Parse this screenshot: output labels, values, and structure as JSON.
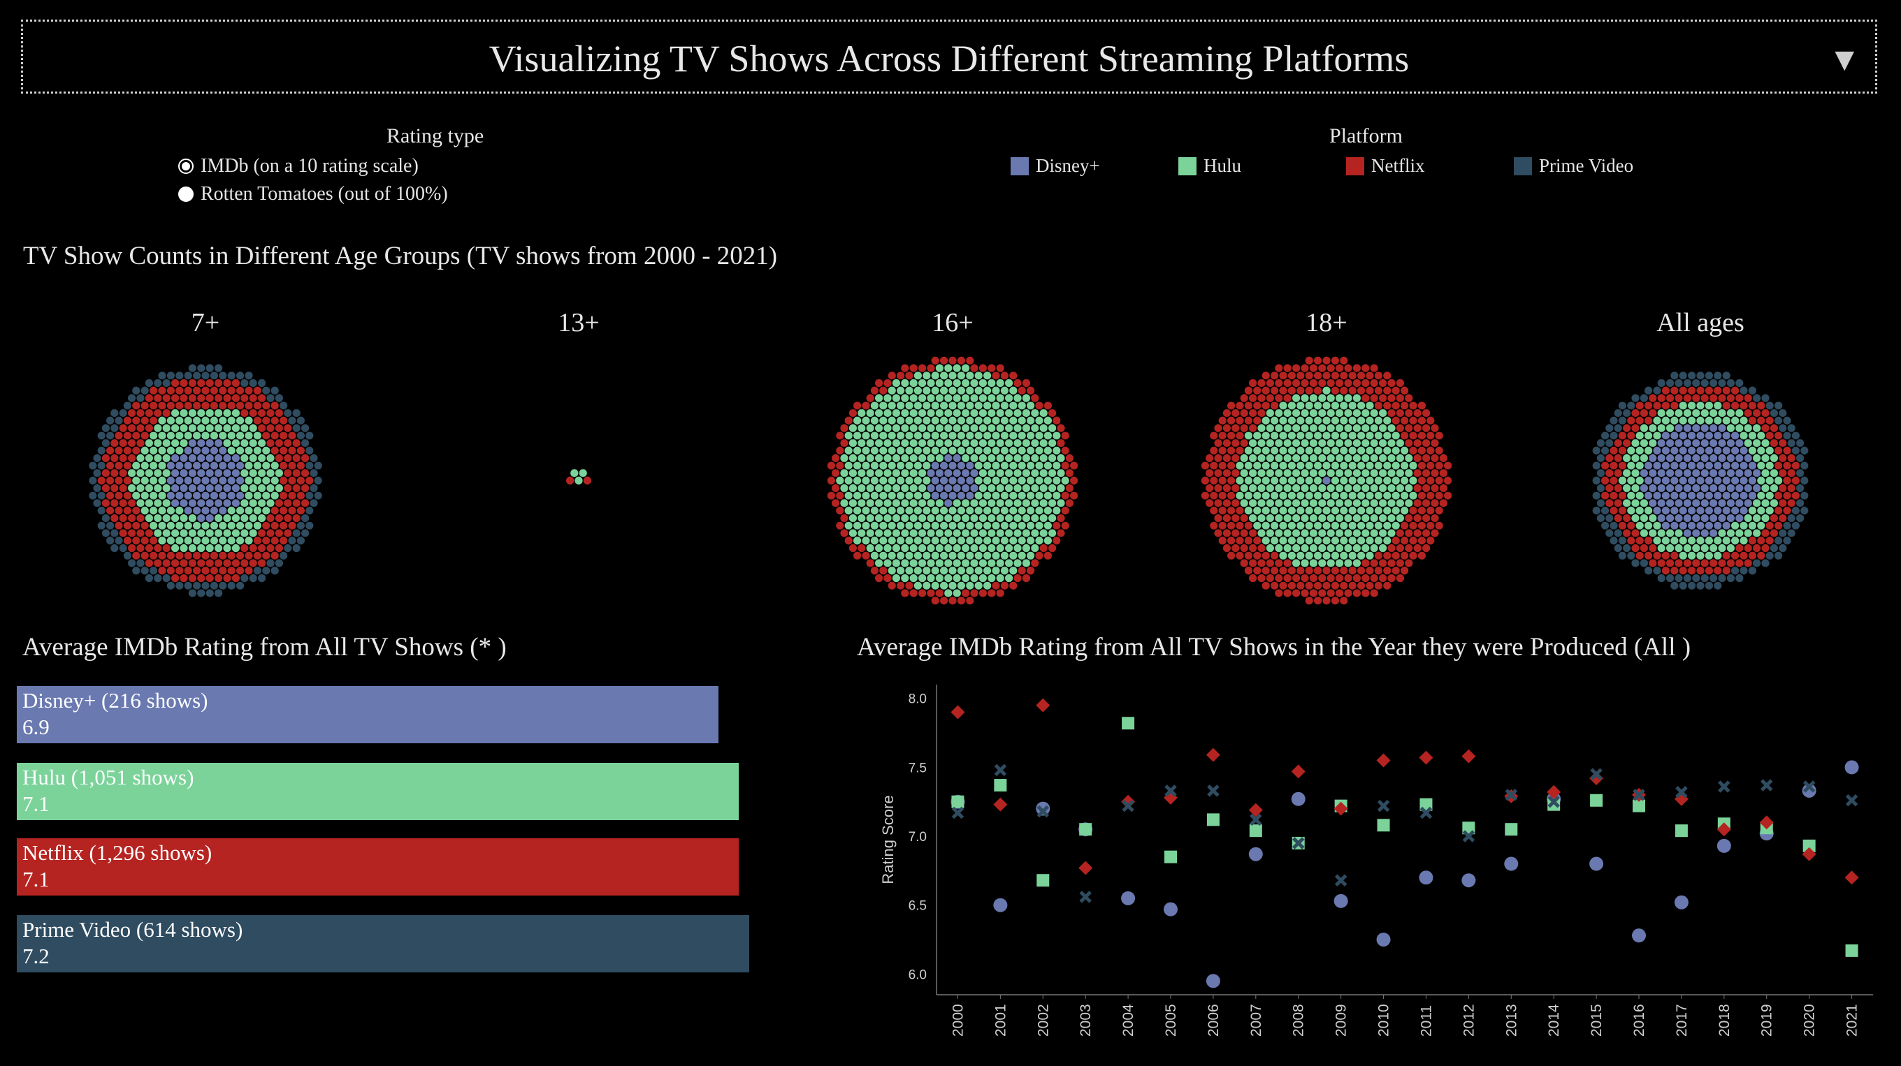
{
  "header": {
    "title": "Visualizing TV Shows Across Different Streaming Platforms",
    "dropdown_glyph": "▼"
  },
  "controls": {
    "rating_type_label": "Rating type",
    "options": [
      {
        "label": "IMDb (on a 10 rating scale)",
        "selected": true
      },
      {
        "label": "Rotten Tomatoes (out of 100%)",
        "selected": false
      }
    ],
    "platform_label": "Platform",
    "platforms": [
      {
        "name": "Disney+",
        "color": "#6a79b0"
      },
      {
        "name": "Hulu",
        "color": "#7bd39a"
      },
      {
        "name": "Netflix",
        "color": "#b52421"
      },
      {
        "name": "Prime Video",
        "color": "#2f4c60"
      }
    ]
  },
  "age_section": {
    "title": "TV Show Counts in Different Age Groups (TV shows from 2000 - 2021)",
    "groups": [
      "7+",
      "13+",
      "16+",
      "18+",
      "All ages"
    ]
  },
  "bar_section": {
    "title": "Average IMDb Rating from All TV Shows (* )"
  },
  "scatter_section": {
    "title": "Average IMDb Rating from All TV Shows in the Year they were Produced (All )"
  },
  "chart_data": [
    {
      "type": "scatter",
      "title": "TV Show Counts in Different Age Groups (TV shows from 2000 - 2021)",
      "categories": [
        "7+",
        "13+",
        "16+",
        "18+",
        "All ages"
      ],
      "note_layers_inner_to_outer": [
        "Disney+",
        "Hulu",
        "Netflix",
        "Prime Video"
      ],
      "series": [
        {
          "name": "Disney+",
          "values": [
            75,
            0,
            30,
            1,
            160
          ]
        },
        {
          "name": "Hulu",
          "values": [
            190,
            3,
            590,
            380,
            140
          ]
        },
        {
          "name": "Netflix",
          "values": [
            250,
            2,
            450,
            490,
            150
          ]
        },
        {
          "name": "Prime Video",
          "values": [
            120,
            0,
            200,
            160,
            120
          ]
        }
      ]
    },
    {
      "type": "bar",
      "title": "Average IMDb Rating from All TV Shows (* )",
      "categories": [
        "Disney+ (216 shows)",
        "Hulu (1,051 shows)",
        "Netflix (1,296 shows)",
        "Prime Video (614 shows)"
      ],
      "values": [
        6.9,
        7.1,
        7.1,
        7.2
      ],
      "value_labels": [
        "6.9",
        "7.1",
        "7.1",
        "7.2"
      ],
      "colors": [
        "#6a79b0",
        "#7bd39a",
        "#b52421",
        "#2f4c60"
      ]
    },
    {
      "type": "scatter",
      "title": "Average IMDb Rating from All TV Shows in the Year they were Produced (All )",
      "ylabel": "Rating Score",
      "ylim": [
        5.85,
        8.1
      ],
      "yticks": [
        "6.0",
        "6.5",
        "7.0",
        "7.5",
        "8.0"
      ],
      "x": [
        "2000",
        "2001",
        "2002",
        "2003",
        "2004",
        "2005",
        "2006",
        "2007",
        "2008",
        "2009",
        "2010",
        "2011",
        "2012",
        "2013",
        "2014",
        "2015",
        "2016",
        "2017",
        "2018",
        "2019",
        "2020",
        "2021"
      ],
      "series": [
        {
          "name": "Disney+",
          "marker": "circle",
          "values": [
            7.25,
            6.5,
            7.2,
            7.05,
            6.55,
            6.47,
            5.95,
            6.87,
            7.27,
            6.53,
            6.25,
            6.7,
            6.68,
            6.8,
            7.27,
            6.8,
            6.28,
            6.52,
            6.93,
            7.02,
            7.33,
            7.5
          ]
        },
        {
          "name": "Hulu",
          "marker": "square",
          "values": [
            7.25,
            7.37,
            6.68,
            7.05,
            7.82,
            6.85,
            7.12,
            7.04,
            6.95,
            7.22,
            7.08,
            7.23,
            7.06,
            7.05,
            7.23,
            7.26,
            7.22,
            7.04,
            7.09,
            7.06,
            6.93,
            6.17
          ]
        },
        {
          "name": "Netflix",
          "marker": "diamond",
          "values": [
            7.9,
            7.23,
            7.95,
            6.77,
            7.25,
            7.28,
            7.59,
            7.19,
            7.47,
            7.2,
            7.55,
            7.57,
            7.58,
            7.29,
            7.32,
            7.42,
            7.3,
            7.27,
            7.05,
            7.1,
            6.87,
            6.7
          ]
        },
        {
          "name": "Prime Video",
          "marker": "x",
          "values": [
            7.17,
            7.48,
            7.18,
            6.56,
            7.22,
            7.33,
            7.33,
            7.12,
            6.95,
            6.68,
            7.22,
            7.17,
            7.0,
            7.3,
            7.25,
            7.45,
            7.3,
            7.32,
            7.36,
            7.37,
            7.36,
            7.26
          ]
        }
      ]
    }
  ]
}
